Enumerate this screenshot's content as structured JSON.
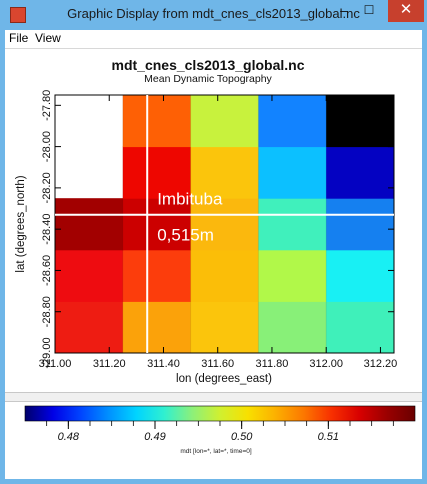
{
  "window": {
    "title": "Graphic Display from mdt_cnes_cls2013_global.nc",
    "minimize_glyph": "–",
    "maximize_glyph": "☐",
    "close_glyph": "✕",
    "chrome_color": "#6fb6e8",
    "close_color": "#c7402d"
  },
  "menu": {
    "file": "File",
    "view": "View"
  },
  "chart_data": {
    "type": "heatmap",
    "title": "mdt_cnes_cls2013_global.nc",
    "subtitle": "Mean Dynamic Topography",
    "xlabel": "lon (degrees_east)",
    "ylabel": "lat (degrees_north)",
    "xlim": [
      311.0,
      312.25
    ],
    "ylim": [
      -29.0,
      -27.75
    ],
    "x_ticks": [
      "311.00",
      "311.20",
      "311.40",
      "311.60",
      "311.80",
      "312.00",
      "312.20"
    ],
    "y_ticks": [
      "-29.00",
      "-28.80",
      "-28.60",
      "-28.40",
      "-28.20",
      "-28.00",
      "-27.80"
    ],
    "x_centers": [
      311.125,
      311.375,
      311.625,
      311.875,
      312.125
    ],
    "y_centers": [
      -28.875,
      -28.625,
      -28.375,
      -28.125,
      -27.875
    ],
    "grid_step": 0.25,
    "cell_colors": [
      [
        "#ee1c12",
        "#fba20a",
        "#fbc50c",
        "#88f078",
        "#3ff0ba"
      ],
      [
        "#ee0c10",
        "#fc3d0c",
        "#fbbe08",
        "#b1f849",
        "#18f0f4"
      ],
      [
        "#a20000",
        "#cc0000",
        "#fbb80d",
        "#40f0bc",
        "#1580f0"
      ],
      [
        null,
        "#ee0600",
        "#fbc50c",
        "#0cc0ff",
        "#0402c2"
      ],
      [
        null,
        "#fe6005",
        "#c8f23d",
        "#1283ff",
        "#000000"
      ]
    ],
    "colorbar": {
      "label": "mdt [lon=*, lat=*, time=0]",
      "min": 0.475,
      "max": 0.52,
      "tick_labels": [
        "0.48",
        "0.49",
        "0.50",
        "0.51"
      ],
      "tick_values": [
        0.48,
        0.49,
        0.5,
        0.51
      ],
      "minor_step": 0.0025,
      "stops": [
        "#00006a",
        "#0000e6",
        "#0044ff",
        "#0090ff",
        "#00d4ff",
        "#30f0d0",
        "#8cf07a",
        "#d0f030",
        "#f8e000",
        "#fcb000",
        "#fc7800",
        "#f83000",
        "#d80000",
        "#9a0000",
        "#6a0000"
      ]
    },
    "marker": {
      "name": "Imbituba",
      "value_text": "0,515m",
      "lon": 311.34,
      "lat": -28.33
    }
  }
}
